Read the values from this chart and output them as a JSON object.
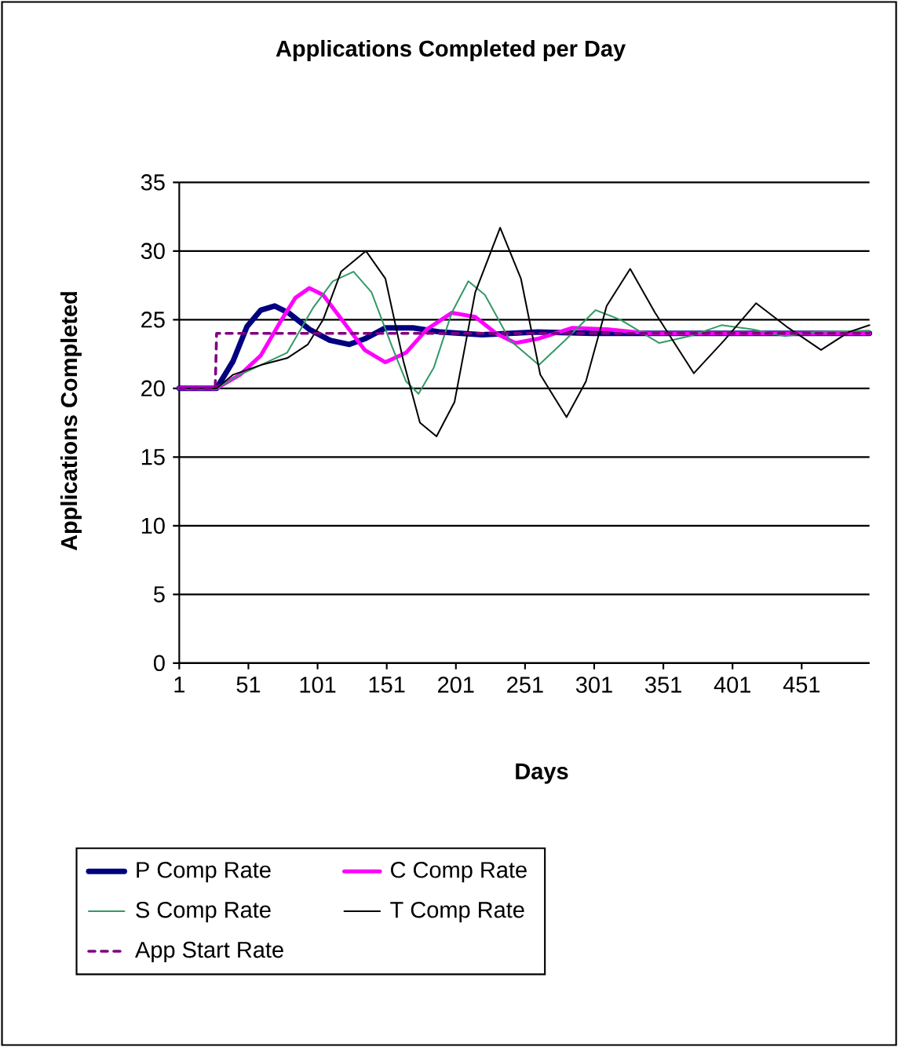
{
  "chart_data": {
    "type": "line",
    "title": "Applications Completed per Day",
    "xlabel": "Days",
    "ylabel": "Applications Completed",
    "xlim": [
      1,
      500
    ],
    "xticks": [
      1,
      51,
      101,
      151,
      201,
      251,
      301,
      351,
      401,
      451
    ],
    "ylim": [
      0,
      35
    ],
    "yticks": [
      0,
      5,
      10,
      15,
      20,
      25,
      30,
      35
    ],
    "grid": "y",
    "legend": "bottom",
    "series": [
      {
        "name": "P Comp Rate",
        "color": "#000080",
        "x": [
          1,
          28,
          40,
          50,
          60,
          70,
          80,
          95,
          110,
          124,
          135,
          150,
          170,
          190,
          220,
          260,
          300,
          500
        ],
        "values": [
          20,
          20,
          22,
          24.5,
          25.7,
          26,
          25.5,
          24.3,
          23.5,
          23.2,
          23.6,
          24.4,
          24.4,
          24.1,
          23.9,
          24.1,
          24,
          24
        ]
      },
      {
        "name": "C Comp Rate",
        "color": "#ff00ff",
        "x": [
          1,
          28,
          45,
          60,
          75,
          85,
          95,
          105,
          120,
          135,
          150,
          165,
          180,
          198,
          215,
          230,
          244,
          260,
          285,
          310,
          340,
          500
        ],
        "values": [
          20,
          20,
          21,
          22.4,
          25,
          26.6,
          27.3,
          26.8,
          24.8,
          22.8,
          21.9,
          22.6,
          24.3,
          25.5,
          25.2,
          24,
          23.3,
          23.6,
          24.4,
          24.3,
          24,
          24
        ]
      },
      {
        "name": "S Comp Rate",
        "color": "#339966",
        "x": [
          1,
          28,
          45,
          60,
          79,
          98,
          112,
          127,
          140,
          155,
          165,
          174,
          185,
          198,
          210,
          222,
          240,
          261,
          280,
          302,
          320,
          348,
          370,
          393,
          415,
          439,
          460,
          500
        ],
        "values": [
          20,
          20,
          21,
          21.7,
          22.6,
          25.9,
          27.8,
          28.5,
          27,
          23,
          20.5,
          19.6,
          21.5,
          25.5,
          27.8,
          26.8,
          23.5,
          21.7,
          23.5,
          25.7,
          25,
          23.3,
          23.8,
          24.6,
          24.3,
          23.8,
          24.1,
          24.2
        ]
      },
      {
        "name": "T Comp Rate",
        "color": "#000000",
        "x": [
          1,
          28,
          40,
          60,
          79,
          94,
          105,
          118,
          136,
          150,
          163,
          175,
          187,
          200,
          215,
          233,
          248,
          262,
          281,
          295,
          310,
          327,
          345,
          373,
          395,
          418,
          440,
          465,
          485,
          500
        ],
        "values": [
          20,
          20,
          21,
          21.7,
          22.2,
          23.2,
          25,
          28.5,
          30,
          28,
          22,
          17.5,
          16.5,
          19,
          27,
          31.7,
          28,
          21,
          17.9,
          20.5,
          26,
          28.7,
          25.5,
          21.1,
          23.5,
          26.2,
          24.5,
          22.8,
          24.1,
          24.6
        ]
      },
      {
        "name": "App Start Rate",
        "color": "#800080",
        "line_style": "dashed",
        "x": [
          1,
          27,
          28,
          500
        ],
        "values": [
          20,
          20,
          24,
          24
        ]
      }
    ]
  }
}
